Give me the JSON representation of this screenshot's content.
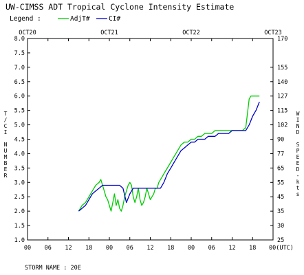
{
  "chart_data": {
    "type": "line",
    "title": "UW-CIMSS ADT Tropical Cyclone Intensity Estimate",
    "legend": {
      "label": "Legend :",
      "position": "top-left",
      "entries": [
        {
          "name": "AdjT#",
          "color": "#00cc00"
        },
        {
          "name": "CI#",
          "color": "#0000cc"
        }
      ]
    },
    "ylabel_left": "T/CI NUMBER",
    "ylabel_right": "WIND SPEED-kts",
    "y_left_range": [
      1.0,
      8.0
    ],
    "y_left_ticks": [
      "1.0",
      "1.5",
      "2.0",
      "2.5",
      "3.0",
      "3.5",
      "4.0",
      "4.5",
      "5.0",
      "5.5",
      "6.0",
      "6.5",
      "7.0",
      "7.5",
      "8.0"
    ],
    "y_right_ticks": [
      "25",
      "30",
      "35",
      "45",
      "55",
      "65",
      "77",
      "90",
      "102",
      "115",
      "127",
      "140",
      "155",
      "170"
    ],
    "y_right_tick_values": [
      1.0,
      1.5,
      2.0,
      2.5,
      3.0,
      3.5,
      4.0,
      4.5,
      5.0,
      5.5,
      6.0,
      6.5,
      7.0,
      8.0
    ],
    "x_range_hours": [
      0,
      72
    ],
    "x_tick_labels": [
      "00",
      "06",
      "12",
      "18",
      "00",
      "06",
      "12",
      "18",
      "00",
      "06",
      "12",
      "18",
      "00(UTC)"
    ],
    "day_labels": [
      {
        "text": "OCT20",
        "hour": 0
      },
      {
        "text": "OCT21",
        "hour": 24
      },
      {
        "text": "OCT22",
        "hour": 48
      },
      {
        "text": "OCT23",
        "hour": 72
      }
    ],
    "series": [
      {
        "name": "AdjT#",
        "color": "#00cc00",
        "x": [
          15.0,
          16.0,
          17.0,
          18.0,
          19.0,
          20.0,
          21.0,
          21.5,
          22.0,
          22.5,
          23.0,
          23.5,
          24.0,
          24.5,
          25.0,
          25.5,
          26.0,
          26.5,
          27.0,
          27.5,
          28.0,
          28.5,
          29.0,
          29.5,
          30.0,
          30.5,
          31.0,
          31.5,
          32.0,
          32.5,
          33.0,
          33.5,
          34.0,
          34.5,
          35.0,
          35.5,
          36.0,
          36.5,
          37.0,
          37.5,
          38.0,
          38.5,
          39.0,
          39.5,
          40.0,
          40.5,
          41.0,
          42.0,
          43.0,
          44.0,
          45.0,
          46.0,
          47.0,
          48.0,
          49.0,
          50.0,
          51.0,
          52.0,
          53.0,
          54.0,
          55.0,
          56.0,
          57.0,
          58.0,
          59.0,
          60.0,
          61.0,
          62.0,
          63.0,
          64.0,
          64.5,
          65.0,
          65.5,
          66.0,
          66.5,
          67.0,
          67.5,
          68.0
        ],
        "y": [
          2.0,
          2.2,
          2.3,
          2.5,
          2.7,
          2.9,
          3.0,
          3.1,
          2.9,
          2.7,
          2.5,
          2.4,
          2.2,
          2.0,
          2.3,
          2.6,
          2.2,
          2.4,
          2.1,
          2.0,
          2.2,
          2.5,
          2.7,
          2.9,
          3.0,
          2.9,
          2.5,
          2.3,
          2.5,
          2.8,
          2.4,
          2.2,
          2.3,
          2.5,
          2.8,
          2.6,
          2.4,
          2.5,
          2.6,
          2.8,
          2.8,
          3.0,
          3.1,
          3.2,
          3.3,
          3.4,
          3.5,
          3.7,
          3.9,
          4.1,
          4.3,
          4.4,
          4.4,
          4.5,
          4.5,
          4.6,
          4.6,
          4.7,
          4.7,
          4.7,
          4.8,
          4.8,
          4.8,
          4.8,
          4.8,
          4.8,
          4.8,
          4.8,
          4.8,
          4.9,
          5.4,
          5.9,
          6.0,
          6.0,
          6.0,
          6.0,
          6.0,
          6.0
        ]
      },
      {
        "name": "CI#",
        "color": "#0000cc",
        "x": [
          15.0,
          16.0,
          17.0,
          18.0,
          19.0,
          20.0,
          21.0,
          22.0,
          23.0,
          24.0,
          25.0,
          26.0,
          27.0,
          28.0,
          29.0,
          30.0,
          31.0,
          32.0,
          33.0,
          34.0,
          35.0,
          36.0,
          37.0,
          38.0,
          39.0,
          40.0,
          41.0,
          42.0,
          43.0,
          44.0,
          45.0,
          46.0,
          47.0,
          48.0,
          49.0,
          50.0,
          51.0,
          52.0,
          53.0,
          54.0,
          55.0,
          56.0,
          57.0,
          58.0,
          59.0,
          60.0,
          61.0,
          62.0,
          63.0,
          64.0,
          65.0,
          66.0,
          67.0,
          68.0
        ],
        "y": [
          2.0,
          2.1,
          2.2,
          2.4,
          2.6,
          2.7,
          2.8,
          2.9,
          2.9,
          2.9,
          2.9,
          2.9,
          2.9,
          2.8,
          2.3,
          2.6,
          2.8,
          2.8,
          2.8,
          2.8,
          2.8,
          2.8,
          2.8,
          2.8,
          2.8,
          3.0,
          3.3,
          3.5,
          3.7,
          3.9,
          4.1,
          4.2,
          4.3,
          4.4,
          4.4,
          4.5,
          4.5,
          4.5,
          4.6,
          4.6,
          4.6,
          4.7,
          4.7,
          4.7,
          4.7,
          4.8,
          4.8,
          4.8,
          4.8,
          4.8,
          5.0,
          5.3,
          5.5,
          5.8
        ]
      }
    ],
    "footer": "STORM NAME : 20E"
  }
}
